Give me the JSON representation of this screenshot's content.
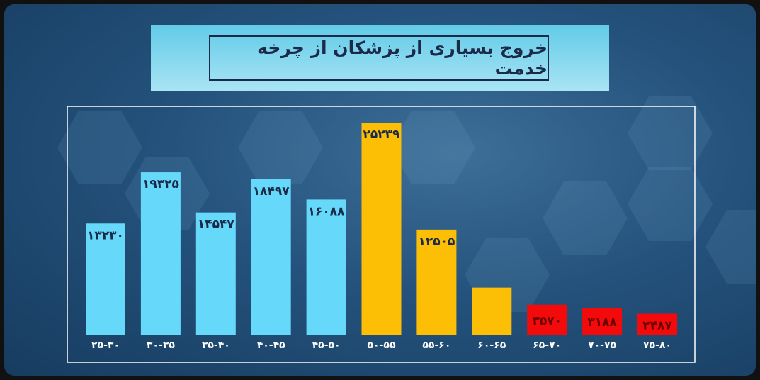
{
  "chart_data": {
    "type": "bar",
    "title": "خروج بسیاری از پزشکان از چرخه خدمت",
    "categories": [
      "۲۵-۳۰",
      "۳۰-۳۵",
      "۳۵-۴۰",
      "۴۰-۴۵",
      "۴۵-۵۰",
      "۵۰-۵۵",
      "۵۵-۶۰",
      "۶۰-۶۵",
      "۶۵-۷۰",
      "۷۰-۷۵",
      "۷۵-۸۰"
    ],
    "values": [
      13230,
      19325,
      14547,
      18497,
      16088,
      25239,
      12505,
      5600,
      3570,
      3188,
      2487
    ],
    "value_labels": [
      "۱۳۲۳۰",
      "۱۹۳۲۵",
      "۱۴۵۴۷",
      "۱۸۴۹۷",
      "۱۶۰۸۸",
      "۲۵۲۳۹",
      "۱۲۵۰۵",
      "",
      "۳۵۷۰",
      "۳۱۸۸",
      "۲۴۸۷"
    ],
    "bar_colors": [
      "#66d8fa",
      "#66d8fa",
      "#66d8fa",
      "#66d8fa",
      "#66d8fa",
      "#fdbf05",
      "#fdbf05",
      "#fdbf05",
      "#f30a0a",
      "#f30a0a",
      "#f30a0a"
    ],
    "label_colors": [
      "#1b2a48",
      "#1b2a48",
      "#1b2a48",
      "#1b2a48",
      "#1b2a48",
      "#1b2a48",
      "#1b2a48",
      "#1b2a48",
      "#6a0000",
      "#6a0000",
      "#6a0000"
    ],
    "ylim": [
      0,
      25239
    ],
    "grid": false,
    "legend": "none",
    "xlabel": "",
    "ylabel": ""
  }
}
